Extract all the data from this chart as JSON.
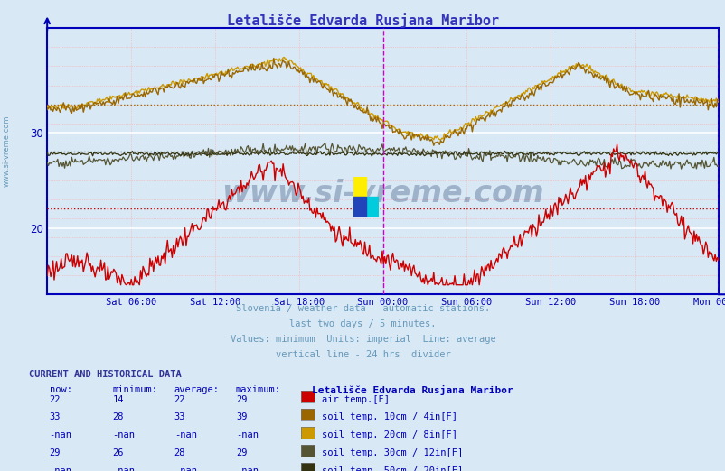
{
  "title": "Letališče Edvarda Rusjana Maribor",
  "title_color": "#3333bb",
  "bg_color": "#d8e8f4",
  "plot_bg_color": "#d8e8f4",
  "x_ticks_labels": [
    "Sat 06:00",
    "Sat 12:00",
    "Sat 18:00",
    "Sun 00:00",
    "Sun 06:00",
    "Sun 12:00",
    "Sun 18:00",
    "Mon 00:00"
  ],
  "x_ticks": [
    6,
    12,
    18,
    24,
    30,
    36,
    42,
    48
  ],
  "y_ticks": [
    20,
    30
  ],
  "ylim": [
    13,
    41
  ],
  "xlim": [
    0,
    48
  ],
  "vline_color": "#cc00cc",
  "vline_x": 24,
  "subtitle_lines": [
    "Slovenia / weather data - automatic stations.",
    "last two days / 5 minutes.",
    "Values: minimum  Units: imperial  Line: average",
    "vertical line - 24 hrs  divider"
  ],
  "subtitle_color": "#6699bb",
  "watermark_text": "www.si-vreme.com",
  "watermark_color": "#1a3a6a",
  "watermark_alpha": 0.3,
  "sidebar_text": "www.si-vreme.com",
  "sidebar_color": "#6699bb",
  "color_air": "#cc0000",
  "color_soil10": "#996600",
  "color_soil20": "#cc9900",
  "color_soil30": "#555533",
  "color_soil50": "#333311",
  "avg_air": 22,
  "avg_soil10": 33,
  "avg_soil30": 28,
  "axis_color": "#0000bb",
  "tick_color": "#0000bb",
  "legend_data": [
    {
      "now": "22",
      "min": "14",
      "avg": "22",
      "max": "29",
      "label": "air temp.[F]",
      "color": "#cc0000"
    },
    {
      "now": "33",
      "min": "28",
      "avg": "33",
      "max": "39",
      "label": "soil temp. 10cm / 4in[F]",
      "color": "#996600"
    },
    {
      "now": "-nan",
      "min": "-nan",
      "avg": "-nan",
      "max": "-nan",
      "label": "soil temp. 20cm / 8in[F]",
      "color": "#cc9900"
    },
    {
      "now": "29",
      "min": "26",
      "avg": "28",
      "max": "29",
      "label": "soil temp. 30cm / 12in[F]",
      "color": "#555533"
    },
    {
      "now": "-nan",
      "min": "-nan",
      "avg": "-nan",
      "max": "-nan",
      "label": "soil temp. 50cm / 20in[F]",
      "color": "#333311"
    }
  ]
}
